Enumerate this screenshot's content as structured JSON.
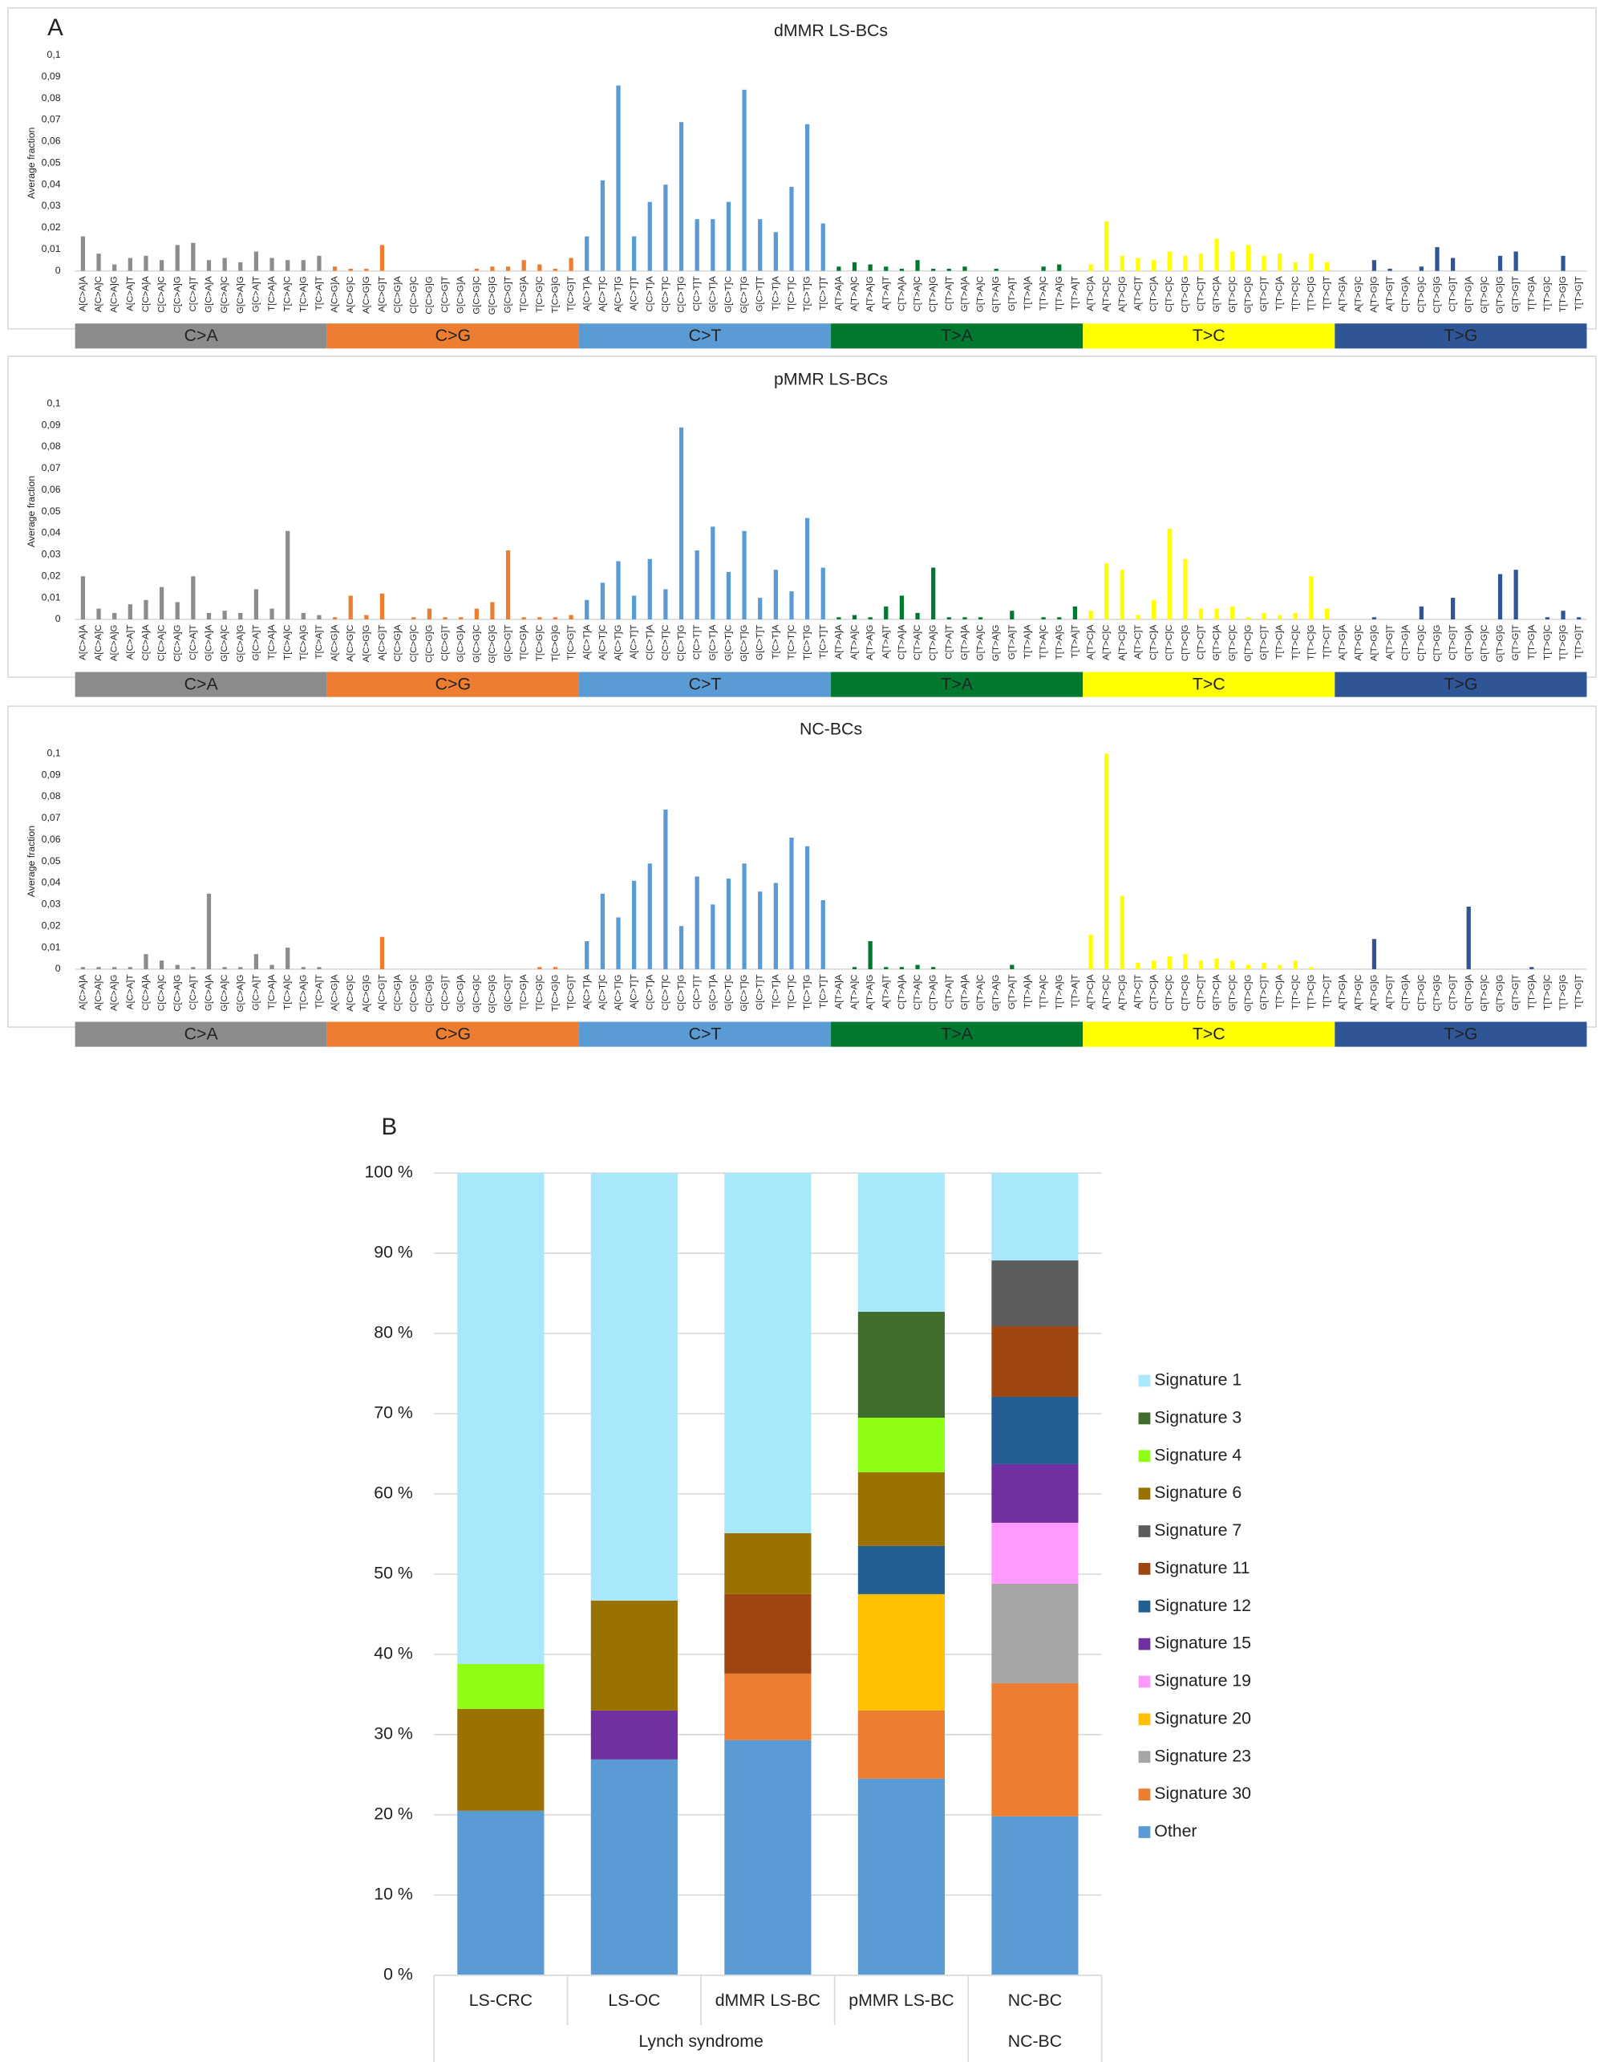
{
  "chart_data": [
    {
      "type": "spectrum",
      "panel": "A",
      "title": "dMMR LS-BCs",
      "ylabel": "Average fraction",
      "ylim": [
        0,
        0.1
      ],
      "yticks": [
        0,
        {
          "value": 0.01,
          "label": "0,01"
        },
        {
          "value": 0.02,
          "label": "0,02"
        },
        {
          "value": 0.03,
          "label": "0,03"
        },
        {
          "value": 0.04,
          "label": "0,04"
        },
        {
          "value": 0.05,
          "label": "0,05"
        },
        {
          "value": 0.06,
          "label": "0,06"
        },
        {
          "value": 0.07,
          "label": "0,07"
        },
        {
          "value": 0.08,
          "label": "0,08"
        },
        {
          "value": 0.09,
          "label": "0,09"
        },
        {
          "value": 0.1,
          "label": "0,1"
        }
      ],
      "groups": [
        {
          "name": "C>A",
          "color": "#8c8c8c",
          "categories": [
            "A[C>A]A",
            "A[C>A]C",
            "A[C>A]G",
            "A[C>A]T",
            "C[C>A]A",
            "C[C>A]C",
            "C[C>A]G",
            "C[C>A]T",
            "G[C>A]A",
            "G[C>A]C",
            "G[C>A]G",
            "G[C>A]T",
            "T[C>A]A",
            "T[C>A]C",
            "T[C>A]G",
            "T[C>A]T"
          ]
        },
        {
          "name": "C>G",
          "color": "#ed7d31",
          "categories": [
            "A[C>G]A",
            "A[C>G]C",
            "A[C>G]G",
            "A[C>G]T",
            "C[C>G]A",
            "C[C>G]C",
            "C[C>G]G",
            "C[C>G]T",
            "G[C>G]A",
            "G[C>G]C",
            "G[C>G]G",
            "G[C>G]T",
            "T[C>G]A",
            "T[C>G]C",
            "T[C>G]G",
            "T[C>G]T"
          ]
        },
        {
          "name": "C>T",
          "color": "#5b9bd5",
          "categories": [
            "A[C>T]A",
            "A[C>T]C",
            "A[C>T]G",
            "A[C>T]T",
            "C[C>T]A",
            "C[C>T]C",
            "C[C>T]G",
            "C[C>T]T",
            "G[C>T]A",
            "G[C>T]C",
            "G[C>T]G",
            "G[C>T]T",
            "T[C>T]A",
            "T[C>T]C",
            "T[C>T]G",
            "T[C>T]T"
          ]
        },
        {
          "name": "T>A",
          "color": "#00782f",
          "categories": [
            "A[T>A]A",
            "A[T>A]C",
            "A[T>A]G",
            "A[T>A]T",
            "C[T>A]A",
            "C[T>A]C",
            "C[T>A]G",
            "C[T>A]T",
            "G[T>A]A",
            "G[T>A]C",
            "G[T>A]G",
            "G[T>A]T",
            "T[T>A]A",
            "T[T>A]C",
            "T[T>A]G",
            "T[T>A]T"
          ]
        },
        {
          "name": "T>C",
          "color": "#ffff00",
          "categories": [
            "A[T>C]A",
            "A[T>C]C",
            "A[T>C]G",
            "A[T>C]T",
            "C[T>C]A",
            "C[T>C]C",
            "C[T>C]G",
            "C[T>C]T",
            "G[T>C]A",
            "G[T>C]C",
            "G[T>C]G",
            "G[T>C]T",
            "T[T>C]A",
            "T[T>C]C",
            "T[T>C]G",
            "T[T>C]T"
          ]
        },
        {
          "name": "T>G",
          "color": "#2f5597",
          "categories": [
            "A[T>G]A",
            "A[T>G]C",
            "A[T>G]G",
            "A[T>G]T",
            "C[T>G]A",
            "C[T>G]C",
            "C[T>G]G",
            "C[T>G]T",
            "G[T>G]A",
            "G[T>G]C",
            "G[T>G]G",
            "G[T>G]T",
            "T[T>G]A",
            "T[T>G]C",
            "T[T>G]G",
            "T[T>G]T"
          ]
        }
      ],
      "values": [
        0.016,
        0.008,
        0.003,
        0.006,
        0.007,
        0.005,
        0.012,
        0.013,
        0.005,
        0.006,
        0.004,
        0.009,
        0.006,
        0.005,
        0.005,
        0.007,
        0.002,
        0.001,
        0.001,
        0.012,
        0,
        0,
        0,
        0,
        0,
        0.001,
        0.002,
        0.002,
        0.005,
        0.003,
        0.001,
        0.006,
        0.016,
        0.042,
        0.086,
        0.016,
        0.032,
        0.04,
        0.069,
        0.024,
        0.024,
        0.032,
        0.084,
        0.024,
        0.018,
        0.039,
        0.068,
        0.022,
        0.002,
        0.004,
        0.003,
        0.002,
        0.001,
        0.005,
        0.001,
        0.001,
        0.002,
        0,
        0.001,
        0,
        0,
        0.002,
        0.003,
        0,
        0.003,
        0.023,
        0.007,
        0.006,
        0.005,
        0.009,
        0.007,
        0.008,
        0.015,
        0.009,
        0.012,
        0.007,
        0.008,
        0.004,
        0.008,
        0.004,
        0,
        0,
        0.005,
        0.001,
        0,
        0.002,
        0.011,
        0.006,
        0,
        0,
        0.007,
        0.009,
        0,
        0,
        0.007,
        0
      ]
    },
    {
      "type": "spectrum",
      "title": "pMMR LS-BCs",
      "ylabel": "Average fraction",
      "ylim": [
        0,
        0.1
      ],
      "yticks": [
        0,
        {
          "value": 0.01,
          "label": "0,01"
        },
        {
          "value": 0.02,
          "label": "0,02"
        },
        {
          "value": 0.03,
          "label": "0,03"
        },
        {
          "value": 0.04,
          "label": "0,04"
        },
        {
          "value": 0.05,
          "label": "0,05"
        },
        {
          "value": 0.06,
          "label": "0,06"
        },
        {
          "value": 0.07,
          "label": "0,07"
        },
        {
          "value": 0.08,
          "label": "0,08"
        },
        {
          "value": 0.09,
          "label": "0,09"
        },
        {
          "value": 0.1,
          "label": "0,1"
        }
      ],
      "groups": [
        {
          "name": "C>A",
          "color": "#8c8c8c",
          "categories": [
            "A[C>A]A",
            "A[C>A]C",
            "A[C>A]G",
            "A[C>A]T",
            "C[C>A]A",
            "C[C>A]C",
            "C[C>A]G",
            "C[C>A]T",
            "G[C>A]A",
            "G[C>A]C",
            "G[C>A]G",
            "G[C>A]T",
            "T[C>A]A",
            "T[C>A]C",
            "T[C>A]G",
            "T[C>A]T"
          ]
        },
        {
          "name": "C>G",
          "color": "#ed7d31",
          "categories": [
            "A[C>G]A",
            "A[C>G]C",
            "A[C>G]G",
            "A[C>G]T",
            "C[C>G]A",
            "C[C>G]C",
            "C[C>G]G",
            "C[C>G]T",
            "G[C>G]A",
            "G[C>G]C",
            "G[C>G]G",
            "G[C>G]T",
            "T[C>G]A",
            "T[C>G]C",
            "T[C>G]G",
            "T[C>G]T"
          ]
        },
        {
          "name": "C>T",
          "color": "#5b9bd5",
          "categories": [
            "A[C>T]A",
            "A[C>T]C",
            "A[C>T]G",
            "A[C>T]T",
            "C[C>T]A",
            "C[C>T]C",
            "C[C>T]G",
            "C[C>T]T",
            "G[C>T]A",
            "G[C>T]C",
            "G[C>T]G",
            "G[C>T]T",
            "T[C>T]A",
            "T[C>T]C",
            "T[C>T]G",
            "T[C>T]T"
          ]
        },
        {
          "name": "T>A",
          "color": "#00782f",
          "categories": [
            "A[T>A]A",
            "A[T>A]C",
            "A[T>A]G",
            "A[T>A]T",
            "C[T>A]A",
            "C[T>A]C",
            "C[T>A]G",
            "C[T>A]T",
            "G[T>A]A",
            "G[T>A]C",
            "G[T>A]G",
            "G[T>A]T",
            "T[T>A]A",
            "T[T>A]C",
            "T[T>A]G",
            "T[T>A]T"
          ]
        },
        {
          "name": "T>C",
          "color": "#ffff00",
          "categories": [
            "A[T>C]A",
            "A[T>C]C",
            "A[T>C]G",
            "A[T>C]T",
            "C[T>C]A",
            "C[T>C]C",
            "C[T>C]G",
            "C[T>C]T",
            "G[T>C]A",
            "G[T>C]C",
            "G[T>C]G",
            "G[T>C]T",
            "T[T>C]A",
            "T[T>C]C",
            "T[T>C]G",
            "T[T>C]T"
          ]
        },
        {
          "name": "T>G",
          "color": "#2f5597",
          "categories": [
            "A[T>G]A",
            "A[T>G]C",
            "A[T>G]G",
            "A[T>G]T",
            "C[T>G]A",
            "C[T>G]C",
            "C[T>G]G",
            "C[T>G]T",
            "G[T>G]A",
            "G[T>G]C",
            "G[T>G]G",
            "G[T>G]T",
            "T[T>G]A",
            "T[T>G]C",
            "T[T>G]G",
            "T[T>G]T"
          ]
        }
      ],
      "values": [
        0.02,
        0.005,
        0.003,
        0.007,
        0.009,
        0.015,
        0.008,
        0.02,
        0.003,
        0.004,
        0.003,
        0.014,
        0.005,
        0.041,
        0.003,
        0.002,
        0.001,
        0.011,
        0.002,
        0.012,
        0,
        0.001,
        0.005,
        0.001,
        0.001,
        0.005,
        0.008,
        0.032,
        0.001,
        0.001,
        0.001,
        0.002,
        0.009,
        0.017,
        0.027,
        0.011,
        0.028,
        0.014,
        0.089,
        0.032,
        0.043,
        0.022,
        0.041,
        0.01,
        0.023,
        0.013,
        0.047,
        0.024,
        0.001,
        0.002,
        0.001,
        0.006,
        0.011,
        0.003,
        0.024,
        0.001,
        0.001,
        0.001,
        0,
        0.004,
        0,
        0.001,
        0.001,
        0.006,
        0.004,
        0.026,
        0.023,
        0.002,
        0.009,
        0.042,
        0.028,
        0.005,
        0.005,
        0.006,
        0.001,
        0.003,
        0.002,
        0.003,
        0.02,
        0.005,
        0,
        0,
        0.001,
        0,
        0,
        0.006,
        0,
        0.01,
        0,
        0,
        0.021,
        0.023,
        0,
        0.001,
        0.004,
        0.001
      ]
    },
    {
      "type": "spectrum",
      "title": "NC-BCs",
      "ylabel": "Average fraction",
      "ylim": [
        0,
        0.1
      ],
      "yticks": [
        0,
        {
          "value": 0.01,
          "label": "0,01"
        },
        {
          "value": 0.02,
          "label": "0,02"
        },
        {
          "value": 0.03,
          "label": "0,03"
        },
        {
          "value": 0.04,
          "label": "0,04"
        },
        {
          "value": 0.05,
          "label": "0,05"
        },
        {
          "value": 0.06,
          "label": "0,06"
        },
        {
          "value": 0.07,
          "label": "0,07"
        },
        {
          "value": 0.08,
          "label": "0,08"
        },
        {
          "value": 0.09,
          "label": "0,09"
        },
        {
          "value": 0.1,
          "label": "0,1"
        }
      ],
      "groups": [
        {
          "name": "C>A",
          "color": "#8c8c8c",
          "categories": [
            "A[C>A]A",
            "A[C>A]C",
            "A[C>A]G",
            "A[C>A]T",
            "C[C>A]A",
            "C[C>A]C",
            "C[C>A]G",
            "C[C>A]T",
            "G[C>A]A",
            "G[C>A]C",
            "G[C>A]G",
            "G[C>A]T",
            "T[C>A]A",
            "T[C>A]C",
            "T[C>A]G",
            "T[C>A]T"
          ]
        },
        {
          "name": "C>G",
          "color": "#ed7d31",
          "categories": [
            "A[C>G]A",
            "A[C>G]C",
            "A[C>G]G",
            "A[C>G]T",
            "C[C>G]A",
            "C[C>G]C",
            "C[C>G]G",
            "C[C>G]T",
            "G[C>G]A",
            "G[C>G]C",
            "G[C>G]G",
            "G[C>G]T",
            "T[C>G]A",
            "T[C>G]C",
            "T[C>G]G",
            "T[C>G]T"
          ]
        },
        {
          "name": "C>T",
          "color": "#5b9bd5",
          "categories": [
            "A[C>T]A",
            "A[C>T]C",
            "A[C>T]G",
            "A[C>T]T",
            "C[C>T]A",
            "C[C>T]C",
            "C[C>T]G",
            "C[C>T]T",
            "G[C>T]A",
            "G[C>T]C",
            "G[C>T]G",
            "G[C>T]T",
            "T[C>T]A",
            "T[C>T]C",
            "T[C>T]G",
            "T[C>T]T"
          ]
        },
        {
          "name": "T>A",
          "color": "#00782f",
          "categories": [
            "A[T>A]A",
            "A[T>A]C",
            "A[T>A]G",
            "A[T>A]T",
            "C[T>A]A",
            "C[T>A]C",
            "C[T>A]G",
            "C[T>A]T",
            "G[T>A]A",
            "G[T>A]C",
            "G[T>A]G",
            "G[T>A]T",
            "T[T>A]A",
            "T[T>A]C",
            "T[T>A]G",
            "T[T>A]T"
          ]
        },
        {
          "name": "T>C",
          "color": "#ffff00",
          "categories": [
            "A[T>C]A",
            "A[T>C]C",
            "A[T>C]G",
            "A[T>C]T",
            "C[T>C]A",
            "C[T>C]C",
            "C[T>C]G",
            "C[T>C]T",
            "G[T>C]A",
            "G[T>C]C",
            "G[T>C]G",
            "G[T>C]T",
            "T[T>C]A",
            "T[T>C]C",
            "T[T>C]G",
            "T[T>C]T"
          ]
        },
        {
          "name": "T>G",
          "color": "#2f5597",
          "categories": [
            "A[T>G]A",
            "A[T>G]C",
            "A[T>G]G",
            "A[T>G]T",
            "C[T>G]A",
            "C[T>G]C",
            "C[T>G]G",
            "C[T>G]T",
            "G[T>G]A",
            "G[T>G]C",
            "G[T>G]G",
            "G[T>G]T",
            "T[T>G]A",
            "T[T>G]C",
            "T[T>G]G",
            "T[T>G]T"
          ]
        }
      ],
      "values": [
        0.001,
        0.001,
        0.001,
        0.001,
        0.007,
        0.004,
        0.002,
        0.001,
        0.035,
        0.001,
        0.001,
        0.007,
        0.002,
        0.01,
        0.001,
        0.001,
        0,
        0,
        0,
        0.015,
        0,
        0,
        0,
        0,
        0,
        0,
        0,
        0,
        0,
        0.001,
        0.001,
        0,
        0.013,
        0.035,
        0.024,
        0.041,
        0.049,
        0.074,
        0.02,
        0.043,
        0.03,
        0.042,
        0.049,
        0.036,
        0.04,
        0.061,
        0.057,
        0.032,
        0,
        0.001,
        0.013,
        0.001,
        0.001,
        0.002,
        0.001,
        0,
        0,
        0,
        0,
        0.002,
        0,
        0,
        0,
        0,
        0.016,
        0.1,
        0.034,
        0.003,
        0.004,
        0.006,
        0.007,
        0.004,
        0.005,
        0.004,
        0.002,
        0.003,
        0.002,
        0.004,
        0.001,
        0,
        0,
        0,
        0.014,
        0,
        0,
        0,
        0,
        0,
        0.029,
        0,
        0,
        0,
        0.001,
        0,
        0,
        0
      ]
    },
    {
      "type": "stacked_bar",
      "panel": "B",
      "grid": true,
      "legend": "right",
      "ylim": [
        0,
        100
      ],
      "yticks": [
        {
          "value": 0,
          "label": "0 %"
        },
        {
          "value": 10,
          "label": "10 %"
        },
        {
          "value": 20,
          "label": "20 %"
        },
        {
          "value": 30,
          "label": "30 %"
        },
        {
          "value": 40,
          "label": "40 %"
        },
        {
          "value": 50,
          "label": "50 %"
        },
        {
          "value": 60,
          "label": "60 %"
        },
        {
          "value": 70,
          "label": "70 %"
        },
        {
          "value": 80,
          "label": "80 %"
        },
        {
          "value": 90,
          "label": "90 %"
        },
        {
          "value": 100,
          "label": "100 %"
        }
      ],
      "groups": [
        {
          "name": "Lynch syndrome",
          "categories": [
            "LS-CRC",
            "LS-OC",
            "dMMR LS-BC",
            "pMMR LS-BC"
          ]
        },
        {
          "name": "NC-BC",
          "categories": [
            "NC-BC"
          ]
        }
      ],
      "series": [
        {
          "name": "Other",
          "color": "#5b9bd5",
          "values": [
            20.5,
            26.9,
            29.3,
            24.5,
            19.8
          ]
        },
        {
          "name": "Signature 30",
          "color": "#ed7d31",
          "values": [
            0,
            0,
            8.3,
            8.5,
            16.6
          ]
        },
        {
          "name": "Signature 23",
          "color": "#a5a5a5",
          "values": [
            0,
            0,
            0,
            0,
            12.4
          ]
        },
        {
          "name": "Signature 20",
          "color": "#ffc000",
          "values": [
            0,
            0,
            0,
            14.5,
            0
          ]
        },
        {
          "name": "Signature 19",
          "color": "#ff99ff",
          "values": [
            0,
            0,
            0,
            0,
            7.6
          ]
        },
        {
          "name": "Signature 15",
          "color": "#7030a0",
          "values": [
            0,
            6.1,
            0,
            0,
            7.3
          ]
        },
        {
          "name": "Signature 12",
          "color": "#245f94",
          "values": [
            0,
            0,
            0,
            6.0,
            8.4
          ]
        },
        {
          "name": "Signature 11",
          "color": "#9e4510",
          "values": [
            0,
            0,
            9.9,
            0,
            8.8
          ]
        },
        {
          "name": "Signature 7",
          "color": "#5c5c5c",
          "values": [
            0,
            0,
            0,
            0,
            8.2
          ]
        },
        {
          "name": "Signature 6",
          "color": "#9a7200",
          "values": [
            12.7,
            13.7,
            7.6,
            9.2,
            0
          ]
        },
        {
          "name": "Signature 4",
          "color": "#8eff14",
          "values": [
            5.6,
            0,
            0,
            6.8,
            0
          ]
        },
        {
          "name": "Signature 3",
          "color": "#3f6d2b",
          "values": [
            0,
            0,
            0,
            13.2,
            0
          ]
        },
        {
          "name": "Signature 1",
          "color": "#a9e8fb",
          "values": [
            61.2,
            53.3,
            44.9,
            17.3,
            10.9
          ]
        }
      ]
    }
  ]
}
